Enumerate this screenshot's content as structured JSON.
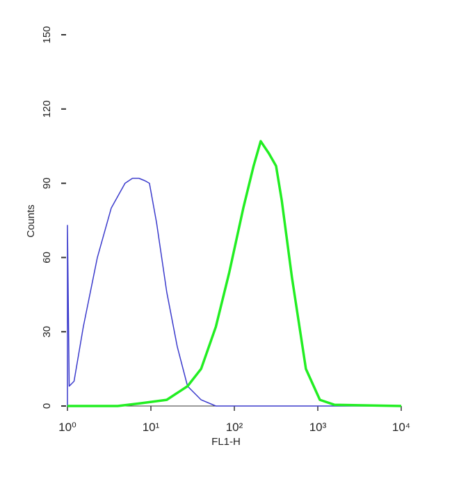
{
  "chart_data": {
    "type": "line",
    "x_label": "FL1-H",
    "y_label": "Counts",
    "xlog": true,
    "xlim": [
      1,
      10000
    ],
    "xticks": [
      {
        "value": 1,
        "label": "10⁰"
      },
      {
        "value": 10,
        "label": "10¹"
      },
      {
        "value": 100,
        "label": "10²"
      },
      {
        "value": 1000,
        "label": "10³"
      },
      {
        "value": 10000,
        "label": "10⁴"
      }
    ],
    "ylim": [
      0,
      150
    ],
    "yticks": [
      0,
      30,
      60,
      90,
      120,
      150
    ],
    "series": [
      {
        "color": "#3a3acc",
        "width": 1.5,
        "x": [
          1,
          1,
          1.05,
          1.2,
          1.55,
          2.28,
          3.35,
          4.9,
          6,
          7.2,
          8.5,
          9.6,
          11.7,
          15.5,
          20.7,
          27.5,
          40,
          60,
          10000
        ],
        "values": [
          0,
          73,
          8,
          10,
          32,
          60,
          80,
          90,
          92,
          92,
          91,
          90,
          74,
          46,
          24,
          8,
          2.5,
          0,
          0
        ]
      },
      {
        "color": "#22ee22",
        "width": 3.5,
        "x": [
          1,
          4,
          7.2,
          15.5,
          27.5,
          40,
          60,
          87,
          128,
          170,
          207,
          260,
          316,
          370,
          490,
          720,
          1060,
          1580,
          10000
        ],
        "values": [
          0,
          0,
          1,
          2.5,
          8,
          15,
          32,
          54,
          80,
          97,
          107,
          102,
          97,
          83,
          52,
          15,
          2.5,
          0.5,
          0
        ]
      }
    ]
  }
}
